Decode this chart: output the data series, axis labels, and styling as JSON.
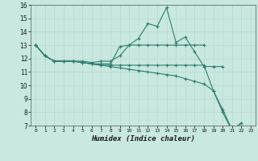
{
  "xlabel": "Humidex (Indice chaleur)",
  "xlim": [
    -0.5,
    23.5
  ],
  "ylim": [
    7,
    16
  ],
  "xtick_vals": [
    0,
    1,
    2,
    3,
    4,
    5,
    6,
    7,
    8,
    9,
    10,
    11,
    12,
    13,
    14,
    15,
    16,
    17,
    18,
    19,
    20,
    21,
    22,
    23
  ],
  "ytick_vals": [
    7,
    8,
    9,
    10,
    11,
    12,
    13,
    14,
    15,
    16
  ],
  "line_color": "#2e7d6e",
  "bg_color": "#c8e8e0",
  "grid_color": "#b8d8d0",
  "series": [
    {
      "x": [
        0,
        1,
        2,
        3,
        4,
        5,
        6,
        7,
        8,
        9,
        10,
        11,
        12,
        13,
        14,
        15,
        16,
        17,
        18,
        19,
        20
      ],
      "y": [
        13.0,
        12.2,
        11.8,
        11.8,
        11.8,
        11.8,
        11.7,
        11.8,
        11.8,
        12.2,
        13.0,
        13.5,
        14.6,
        14.4,
        15.8,
        13.2,
        13.6,
        12.5,
        11.4,
        11.4,
        11.4
      ]
    },
    {
      "x": [
        0,
        1,
        2,
        3,
        4,
        5,
        6,
        7,
        8,
        9,
        10,
        11,
        12,
        13,
        14,
        15,
        16,
        17,
        18
      ],
      "y": [
        13.0,
        12.2,
        11.8,
        11.8,
        11.8,
        11.7,
        11.6,
        11.6,
        11.6,
        12.9,
        13.0,
        13.0,
        13.0,
        13.0,
        13.0,
        13.0,
        13.0,
        13.0,
        13.0
      ]
    },
    {
      "x": [
        0,
        1,
        2,
        3,
        4,
        5,
        6,
        7,
        8,
        9,
        10,
        11,
        12,
        13,
        14,
        15,
        16,
        17,
        18,
        19,
        20,
        21,
        22
      ],
      "y": [
        13.0,
        12.2,
        11.8,
        11.8,
        11.8,
        11.7,
        11.6,
        11.5,
        11.5,
        11.5,
        11.5,
        11.5,
        11.5,
        11.5,
        11.5,
        11.5,
        11.5,
        11.5,
        11.5,
        9.6,
        8.0,
        6.6,
        7.2
      ]
    },
    {
      "x": [
        0,
        1,
        2,
        3,
        4,
        5,
        6,
        7,
        8,
        9,
        10,
        11,
        12,
        13,
        14,
        15,
        16,
        17,
        18,
        19,
        20,
        21,
        22
      ],
      "y": [
        13.0,
        12.2,
        11.8,
        11.8,
        11.8,
        11.7,
        11.6,
        11.5,
        11.4,
        11.3,
        11.2,
        11.1,
        11.0,
        10.9,
        10.8,
        10.7,
        10.5,
        10.3,
        10.1,
        9.6,
        8.2,
        6.7,
        7.2
      ]
    }
  ]
}
